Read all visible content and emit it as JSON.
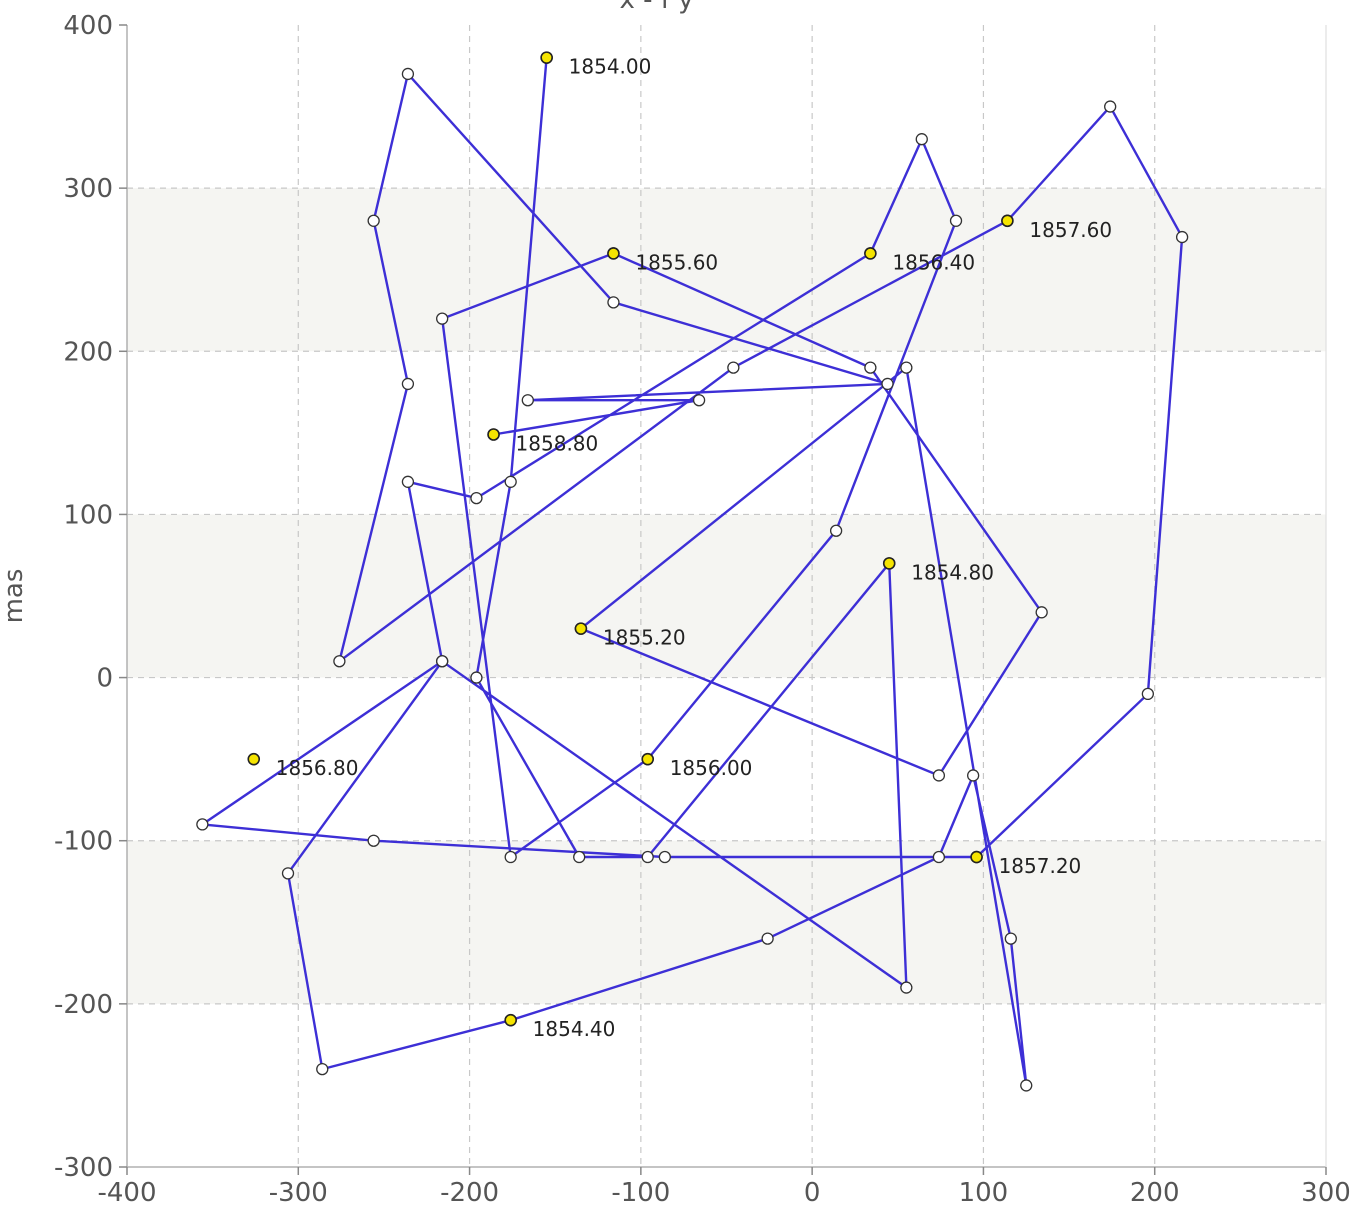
{
  "chart_data": {
    "type": "line",
    "title": "x - f y",
    "xlabel": "",
    "ylabel": "mas",
    "xlim": [
      -400,
      300
    ],
    "ylim": [
      -300,
      400
    ],
    "x_ticks": [
      "-400",
      "-300",
      "-200",
      "-100",
      "0",
      "100",
      "200",
      "300"
    ],
    "y_ticks": [
      "400",
      "300",
      "200",
      "100",
      "0",
      "-100",
      "-200",
      "-300"
    ],
    "grid": true,
    "background_bands": [
      [
        200,
        300
      ],
      [
        0,
        100
      ],
      [
        -200,
        -100
      ]
    ],
    "colors": {
      "line": "#3d2fd6",
      "marker_fill": "#ffffff",
      "labeled_marker_fill": "#f5e400",
      "band": "#f5f5f2",
      "grid": "#c8c8c8"
    },
    "series": [
      {
        "points": [
          [
            -155,
            380
          ],
          [
            -176,
            120
          ],
          [
            -196,
            0
          ],
          [
            -136,
            -110
          ],
          [
            -96,
            -110
          ],
          [
            45,
            70
          ],
          [
            55,
            -190
          ],
          [
            -216,
            10
          ],
          [
            -306,
            -120
          ],
          [
            -286,
            -240
          ],
          [
            -176,
            -210
          ],
          [
            -26,
            -160
          ],
          [
            74,
            -110
          ],
          [
            94,
            -60
          ],
          [
            116,
            -160
          ],
          [
            125,
            -250
          ],
          [
            55,
            190
          ],
          [
            -135,
            30
          ],
          [
            74,
            -60
          ],
          [
            134,
            40
          ],
          [
            34,
            190
          ],
          [
            -116,
            260
          ],
          [
            -216,
            220
          ],
          [
            -176,
            -110
          ],
          [
            -96,
            -50
          ],
          [
            14,
            90
          ],
          [
            84,
            280
          ],
          [
            64,
            330
          ],
          [
            34,
            260
          ],
          [
            -196,
            110
          ],
          [
            -236,
            120
          ],
          [
            -216,
            10
          ],
          [
            -356,
            -90
          ],
          [
            -256,
            -100
          ],
          [
            -86,
            -110
          ],
          [
            96,
            -110
          ],
          [
            196,
            -10
          ],
          [
            216,
            270
          ],
          [
            174,
            350
          ],
          [
            114,
            280
          ],
          [
            -46,
            190
          ],
          [
            -276,
            10
          ],
          [
            -236,
            180
          ],
          [
            -256,
            280
          ],
          [
            -236,
            370
          ],
          [
            -116,
            230
          ],
          [
            44,
            180
          ],
          [
            -166,
            170
          ],
          [
            -66,
            170
          ],
          [
            -186,
            149
          ]
        ]
      }
    ],
    "labeled_points": [
      {
        "x": -155,
        "y": 380,
        "label": "1854.00"
      },
      {
        "x": -176,
        "y": -210,
        "label": "1854.40"
      },
      {
        "x": 45,
        "y": 70,
        "label": "1854.80"
      },
      {
        "x": -135,
        "y": 30,
        "label": "1855.20"
      },
      {
        "x": -116,
        "y": 260,
        "label": "1855.60"
      },
      {
        "x": -96,
        "y": -50,
        "label": "1856.00"
      },
      {
        "x": 34,
        "y": 260,
        "label": "1856.40"
      },
      {
        "x": -326,
        "y": -50,
        "label": "1856.80"
      },
      {
        "x": 96,
        "y": -110,
        "label": "1857.20"
      },
      {
        "x": 114,
        "y": 280,
        "label": "1857.60"
      },
      {
        "x": -186,
        "y": 149,
        "label": "1858.80"
      }
    ]
  }
}
